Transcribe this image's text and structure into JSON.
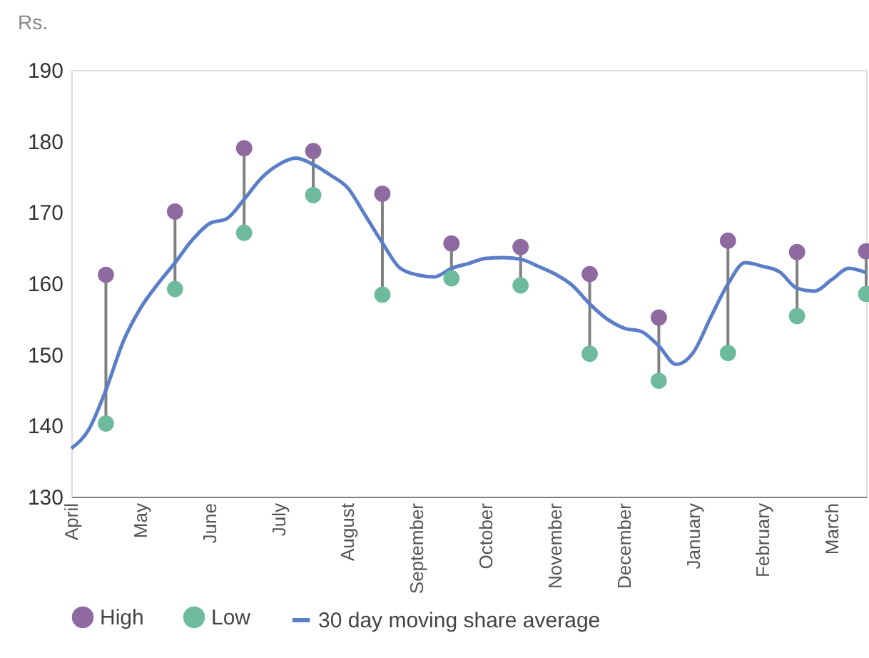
{
  "chart_data": {
    "type": "scatter",
    "ylabel": "Rs.",
    "categories": [
      "April",
      null,
      null,
      null,
      "May",
      null,
      null,
      null,
      "June",
      null,
      null,
      null,
      "July",
      null,
      null,
      null,
      "August",
      null,
      null,
      null,
      "September",
      null,
      null,
      null,
      "October",
      null,
      null,
      null,
      "November",
      null,
      null,
      null,
      "December",
      null,
      null,
      null,
      "January",
      null,
      null,
      null,
      "February",
      null,
      null,
      null,
      "March",
      null,
      null
    ],
    "series": [
      {
        "name": "High",
        "color": "#8e6aa0",
        "marker": "circle",
        "values": [
          null,
          null,
          161.2,
          null,
          null,
          null,
          170.1,
          null,
          null,
          null,
          179.0,
          null,
          null,
          null,
          178.6,
          null,
          null,
          null,
          172.6,
          null,
          null,
          null,
          165.6,
          null,
          null,
          null,
          165.1,
          null,
          null,
          null,
          161.3,
          null,
          null,
          null,
          155.2,
          null,
          null,
          null,
          166.0,
          null,
          null,
          null,
          164.4,
          null,
          null,
          null,
          164.5
        ]
      },
      {
        "name": "Low",
        "color": "#6dbb9c",
        "marker": "circle",
        "values": [
          null,
          null,
          140.3,
          null,
          null,
          null,
          159.2,
          null,
          null,
          null,
          167.1,
          null,
          null,
          null,
          172.4,
          null,
          null,
          null,
          158.4,
          null,
          null,
          null,
          160.7,
          null,
          null,
          null,
          159.7,
          null,
          null,
          null,
          150.1,
          null,
          null,
          null,
          146.3,
          null,
          null,
          null,
          150.2,
          null,
          null,
          null,
          155.4,
          null,
          null,
          null,
          158.5
        ]
      },
      {
        "name": "30 day moving share average",
        "type": "line",
        "color": "#5b7ec8",
        "marker": "none",
        "values": [
          136.8,
          139.4,
          145.0,
          151.8,
          156.5,
          159.9,
          162.9,
          166.1,
          168.4,
          169.1,
          171.8,
          174.8,
          176.7,
          177.6,
          176.7,
          175.2,
          173.4,
          169.6,
          165.7,
          162.2,
          161.2,
          160.9,
          162.1,
          162.8,
          163.5,
          163.6,
          163.4,
          162.4,
          161.3,
          159.7,
          157.1,
          155.0,
          153.7,
          153.2,
          151.2,
          148.6,
          150.3,
          155.2,
          159.9,
          162.9,
          162.4,
          161.6,
          159.3,
          158.9,
          160.5,
          162.1,
          161.5
        ]
      }
    ],
    "ylim": [
      130,
      190
    ],
    "yticks": [
      130,
      140,
      150,
      160,
      170,
      180,
      190
    ],
    "grid": false,
    "legend": "bottom"
  }
}
